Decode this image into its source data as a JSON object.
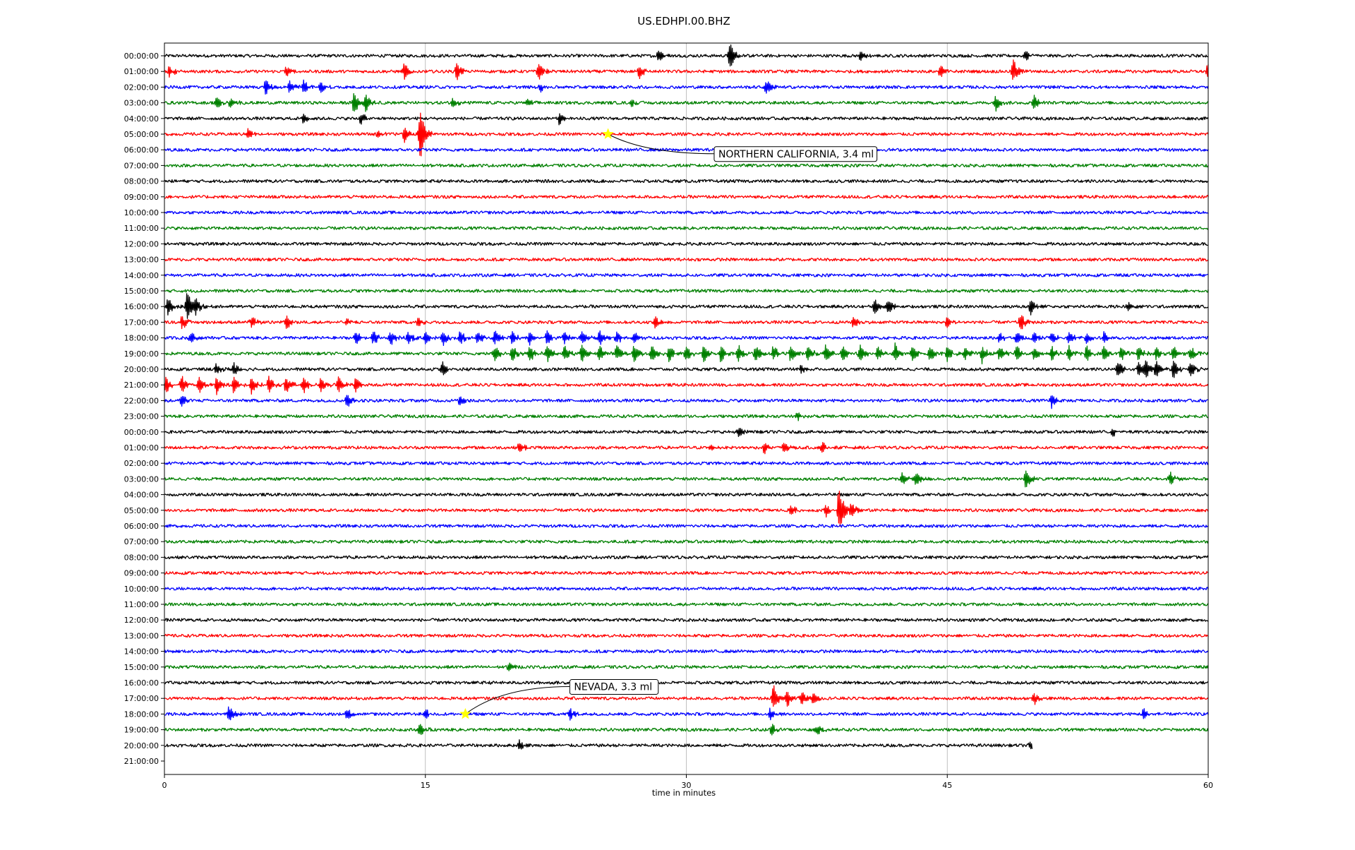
{
  "chart_data": {
    "type": "line",
    "title": "US.EDHPI.00.BHZ",
    "xlabel": "time in minutes",
    "ylabel": "",
    "xlim": [
      0,
      60
    ],
    "x_ticks": [
      "0",
      "15",
      "30",
      "45",
      "60"
    ],
    "x_tick_values": [
      0,
      15,
      30,
      45,
      60
    ],
    "grid": "vertical lines at x ticks",
    "legend": "none",
    "row_colors": [
      "#000000",
      "#ff0000",
      "#0000ff",
      "#008000"
    ],
    "rows": [
      {
        "label": "00:00:00",
        "end": 60,
        "events": [
          [
            28.4,
            0.5
          ],
          [
            32.5,
            1.0
          ],
          [
            40,
            0.4
          ],
          [
            49.5,
            0.4
          ]
        ]
      },
      {
        "label": "01:00:00",
        "end": 60,
        "events": [
          [
            0.3,
            0.4
          ],
          [
            7,
            0.4
          ],
          [
            13.8,
            0.6
          ],
          [
            16.8,
            0.6
          ],
          [
            21.5,
            0.6
          ],
          [
            27.3,
            0.5
          ],
          [
            44.6,
            0.5
          ],
          [
            48.8,
            0.8
          ],
          [
            60,
            0.6
          ]
        ]
      },
      {
        "label": "02:00:00",
        "end": 60,
        "events": [
          [
            5.8,
            0.5
          ],
          [
            7.2,
            0.5
          ],
          [
            8,
            0.5
          ],
          [
            9,
            0.4
          ],
          [
            21.6,
            0.3
          ],
          [
            34.6,
            0.5
          ]
        ]
      },
      {
        "label": "03:00:00",
        "end": 60,
        "events": [
          [
            3,
            0.4
          ],
          [
            3.8,
            0.4
          ],
          [
            10.9,
            0.8
          ],
          [
            11.6,
            0.6
          ],
          [
            16.6,
            0.4
          ],
          [
            20.8,
            0.3
          ],
          [
            26.8,
            0.3
          ],
          [
            47.8,
            0.6
          ],
          [
            50,
            0.5
          ]
        ]
      },
      {
        "label": "04:00:00",
        "end": 60,
        "events": [
          [
            8,
            0.4
          ],
          [
            11.3,
            0.4
          ],
          [
            22.7,
            0.4
          ]
        ]
      },
      {
        "label": "05:00:00",
        "end": 60,
        "events": [
          [
            4.8,
            0.4
          ],
          [
            12.3,
            0.3
          ],
          [
            13.8,
            0.6
          ],
          [
            14.7,
            1.9
          ]
        ]
      },
      {
        "label": "06:00:00",
        "end": 60,
        "events": []
      },
      {
        "label": "07:00:00",
        "end": 60,
        "events": []
      },
      {
        "label": "08:00:00",
        "end": 60,
        "events": []
      },
      {
        "label": "09:00:00",
        "end": 60,
        "events": []
      },
      {
        "label": "10:00:00",
        "end": 60,
        "events": []
      },
      {
        "label": "11:00:00",
        "end": 60,
        "events": []
      },
      {
        "label": "12:00:00",
        "end": 60,
        "events": []
      },
      {
        "label": "13:00:00",
        "end": 60,
        "events": []
      },
      {
        "label": "14:00:00",
        "end": 60,
        "events": []
      },
      {
        "label": "15:00:00",
        "end": 60,
        "events": []
      },
      {
        "label": "16:00:00",
        "end": 60,
        "events": [
          [
            0.2,
            0.6
          ],
          [
            1.3,
            1.1
          ],
          [
            1.8,
            0.5
          ],
          [
            40.8,
            0.5
          ],
          [
            41.6,
            0.5
          ],
          [
            49.8,
            0.6
          ],
          [
            55.4,
            0.4
          ]
        ]
      },
      {
        "label": "17:00:00",
        "end": 60,
        "events": [
          [
            1,
            0.5
          ],
          [
            5,
            0.4
          ],
          [
            7,
            0.5
          ],
          [
            10.5,
            0.3
          ],
          [
            14.6,
            0.3
          ],
          [
            28.2,
            0.4
          ],
          [
            39.6,
            0.4
          ],
          [
            45,
            0.4
          ],
          [
            49.2,
            0.6
          ]
        ]
      },
      {
        "label": "18:00:00",
        "end": 60,
        "events": [
          [
            1.5,
            0.4
          ],
          [
            11,
            0.5
          ],
          [
            12,
            0.5
          ],
          [
            13,
            0.5
          ],
          [
            14,
            0.5
          ],
          [
            15,
            0.5
          ],
          [
            16,
            0.5
          ],
          [
            17,
            0.5
          ],
          [
            18,
            0.5
          ],
          [
            19,
            0.5
          ],
          [
            20,
            0.5
          ],
          [
            21,
            0.5
          ],
          [
            22,
            0.5
          ],
          [
            23,
            0.5
          ],
          [
            24,
            0.5
          ],
          [
            25,
            0.5
          ],
          [
            26,
            0.5
          ],
          [
            27,
            0.4
          ],
          [
            48,
            0.4
          ],
          [
            49,
            0.4
          ],
          [
            50,
            0.4
          ],
          [
            51,
            0.4
          ],
          [
            52,
            0.4
          ],
          [
            53,
            0.4
          ],
          [
            54,
            0.4
          ]
        ]
      },
      {
        "label": "19:00:00",
        "end": 60,
        "events": [
          [
            19,
            0.6
          ],
          [
            20,
            0.6
          ],
          [
            21,
            0.6
          ],
          [
            22,
            0.6
          ],
          [
            23,
            0.6
          ],
          [
            24,
            0.6
          ],
          [
            25,
            0.6
          ],
          [
            26,
            0.6
          ],
          [
            27,
            0.6
          ],
          [
            28,
            0.6
          ],
          [
            29,
            0.6
          ],
          [
            30,
            0.6
          ],
          [
            31,
            0.6
          ],
          [
            32,
            0.6
          ],
          [
            33,
            0.6
          ],
          [
            34,
            0.6
          ],
          [
            35,
            0.6
          ],
          [
            36,
            0.6
          ],
          [
            37,
            0.6
          ],
          [
            38,
            0.6
          ],
          [
            39,
            0.6
          ],
          [
            40,
            0.6
          ],
          [
            41,
            0.6
          ],
          [
            42,
            0.6
          ],
          [
            43,
            0.6
          ],
          [
            44,
            0.6
          ],
          [
            45,
            0.6
          ],
          [
            46,
            0.6
          ],
          [
            47,
            0.6
          ],
          [
            48,
            0.6
          ],
          [
            49,
            0.6
          ],
          [
            50,
            0.5
          ],
          [
            51,
            0.5
          ],
          [
            52,
            0.5
          ],
          [
            53,
            0.5
          ],
          [
            54,
            0.5
          ],
          [
            55,
            0.5
          ],
          [
            56,
            0.5
          ],
          [
            57,
            0.5
          ],
          [
            58,
            0.5
          ],
          [
            59,
            0.5
          ]
        ]
      },
      {
        "label": "20:00:00",
        "end": 60,
        "events": [
          [
            3,
            0.4
          ],
          [
            4,
            0.4
          ],
          [
            16,
            0.5
          ],
          [
            36.6,
            0.3
          ],
          [
            54.8,
            0.6
          ],
          [
            56,
            0.6
          ],
          [
            56.4,
            0.6
          ],
          [
            57,
            0.6
          ],
          [
            58,
            0.6
          ],
          [
            59,
            0.6
          ]
        ]
      },
      {
        "label": "21:00:00",
        "end": 60,
        "events": [
          [
            0.1,
            0.6
          ],
          [
            1,
            0.6
          ],
          [
            2,
            0.6
          ],
          [
            3,
            0.6
          ],
          [
            4,
            0.6
          ],
          [
            5,
            0.6
          ],
          [
            6,
            0.6
          ],
          [
            7,
            0.6
          ],
          [
            8,
            0.6
          ],
          [
            9,
            0.6
          ],
          [
            10,
            0.6
          ],
          [
            11,
            0.6
          ]
        ]
      },
      {
        "label": "22:00:00",
        "end": 60,
        "events": [
          [
            1,
            0.4
          ],
          [
            10.5,
            0.5
          ],
          [
            17,
            0.4
          ],
          [
            51,
            0.5
          ]
        ]
      },
      {
        "label": "23:00:00",
        "end": 60,
        "events": [
          [
            36.4,
            0.3
          ]
        ]
      },
      {
        "label": "00:00:00",
        "end": 60,
        "events": [
          [
            33,
            0.3
          ],
          [
            54.5,
            0.3
          ]
        ]
      },
      {
        "label": "01:00:00",
        "end": 60,
        "events": [
          [
            20.4,
            0.4
          ],
          [
            31.4,
            0.3
          ],
          [
            34.5,
            0.4
          ],
          [
            35.6,
            0.4
          ],
          [
            37.8,
            0.4
          ]
        ]
      },
      {
        "label": "02:00:00",
        "end": 60,
        "events": []
      },
      {
        "label": "03:00:00",
        "end": 60,
        "events": [
          [
            42.4,
            0.6
          ],
          [
            43.2,
            0.5
          ],
          [
            49.5,
            0.7
          ],
          [
            57.8,
            0.5
          ]
        ]
      },
      {
        "label": "04:00:00",
        "end": 60,
        "events": []
      },
      {
        "label": "05:00:00",
        "end": 60,
        "events": [
          [
            36,
            0.4
          ],
          [
            38,
            0.5
          ],
          [
            38.8,
            1.9
          ],
          [
            39.5,
            0.5
          ]
        ]
      },
      {
        "label": "06:00:00",
        "end": 60,
        "events": []
      },
      {
        "label": "07:00:00",
        "end": 60,
        "events": []
      },
      {
        "label": "08:00:00",
        "end": 60,
        "events": []
      },
      {
        "label": "09:00:00",
        "end": 60,
        "events": []
      },
      {
        "label": "10:00:00",
        "end": 60,
        "events": []
      },
      {
        "label": "11:00:00",
        "end": 60,
        "events": []
      },
      {
        "label": "12:00:00",
        "end": 60,
        "events": []
      },
      {
        "label": "13:00:00",
        "end": 60,
        "events": []
      },
      {
        "label": "14:00:00",
        "end": 60,
        "events": []
      },
      {
        "label": "15:00:00",
        "end": 60,
        "events": [
          [
            19.8,
            0.3
          ]
        ]
      },
      {
        "label": "16:00:00",
        "end": 60,
        "events": []
      },
      {
        "label": "17:00:00",
        "end": 60,
        "events": [
          [
            35,
            0.9
          ],
          [
            35.8,
            0.6
          ],
          [
            36.6,
            0.5
          ],
          [
            37.3,
            0.4
          ],
          [
            50,
            0.4
          ]
        ]
      },
      {
        "label": "18:00:00",
        "end": 60,
        "events": [
          [
            3.7,
            0.6
          ],
          [
            10.5,
            0.4
          ],
          [
            15,
            0.3
          ],
          [
            23.3,
            0.4
          ],
          [
            34.8,
            0.4
          ],
          [
            56.3,
            0.4
          ]
        ]
      },
      {
        "label": "19:00:00",
        "end": 60,
        "events": [
          [
            14.7,
            0.5
          ],
          [
            34.9,
            0.4
          ],
          [
            37.5,
            0.4
          ]
        ]
      },
      {
        "label": "20:00:00",
        "end": 49.9,
        "events": [
          [
            20.4,
            0.3
          ],
          [
            49.8,
            0.3
          ]
        ]
      },
      {
        "label": "21:00:00",
        "end": 0,
        "events": []
      }
    ],
    "annotations": [
      {
        "text": "NORTHERN CALIFORNIA, 3.4 ml",
        "row": 5,
        "minute": 25.5,
        "label_minute": 31.6,
        "label_row": 6.25
      },
      {
        "text": "NEVADA, 3.3 ml",
        "row": 42,
        "minute": 17.3,
        "label_minute": 23.3,
        "label_row": 40.25
      }
    ]
  }
}
